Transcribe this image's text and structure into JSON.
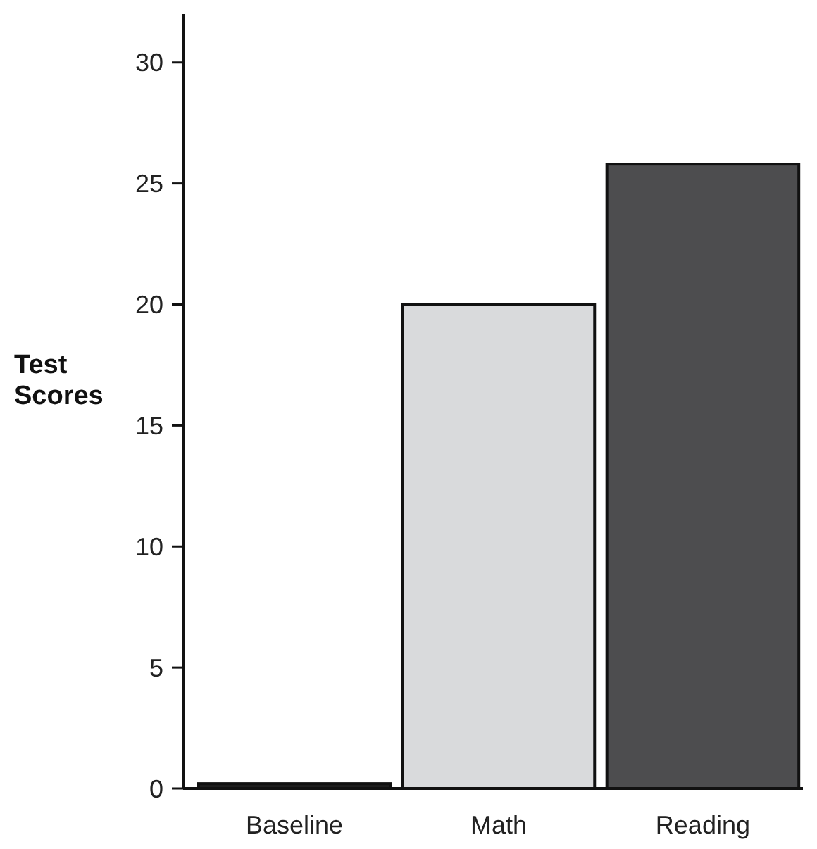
{
  "chart_data": {
    "type": "bar",
    "ylabel": "Test Scores",
    "categories": [
      "Baseline",
      "Math",
      "Reading"
    ],
    "values": [
      0.2,
      20,
      25.8
    ],
    "colors": [
      "#1e1e1e",
      "#d9dadc",
      "#4d4d4f"
    ],
    "ylim": [
      0,
      32
    ],
    "yticks": [
      0,
      5,
      10,
      15,
      20,
      25,
      30
    ],
    "grid": false
  }
}
